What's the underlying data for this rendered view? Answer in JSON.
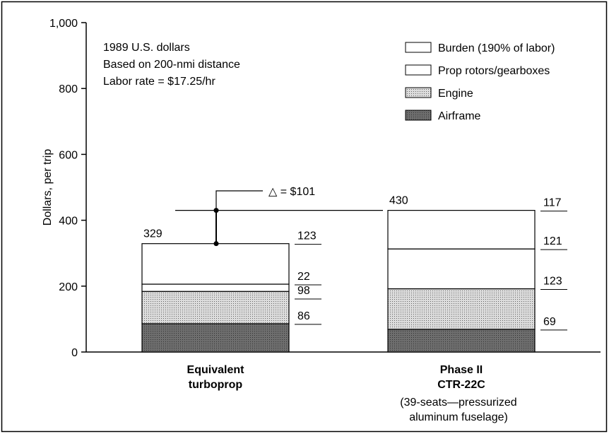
{
  "chart_data": {
    "type": "stacked_bar",
    "y_label": "Dollars, per trip",
    "notes": [
      "1989 U.S. dollars",
      "Based on 200-nmi distance",
      "Labor rate = $17.25/hr"
    ],
    "categories": [
      "Equivalent\nturboprop",
      "Phase II\nCTR-22C"
    ],
    "category_note": "(39-seats—pressurized\naluminum fuselage)",
    "series": [
      {
        "name": "Airframe",
        "color": "#6e6e6e",
        "values": [
          86,
          69
        ]
      },
      {
        "name": "Engine",
        "color": "#dcdcdc",
        "values": [
          98,
          123
        ]
      },
      {
        "name": "Prop rotors/gearboxes",
        "color": "#ffffff",
        "values": [
          22,
          121
        ]
      },
      {
        "name": "Burden (190% of labor)",
        "color": "#ffffff",
        "values": [
          123,
          117
        ]
      }
    ],
    "totals": [
      329,
      430
    ],
    "delta_annotation": "△ = $101",
    "ylim": [
      0,
      1000
    ],
    "yticks": [
      0,
      200,
      400,
      600,
      800,
      {
        "value": 1000,
        "label": "1,000"
      }
    ],
    "legend": "top-right"
  }
}
